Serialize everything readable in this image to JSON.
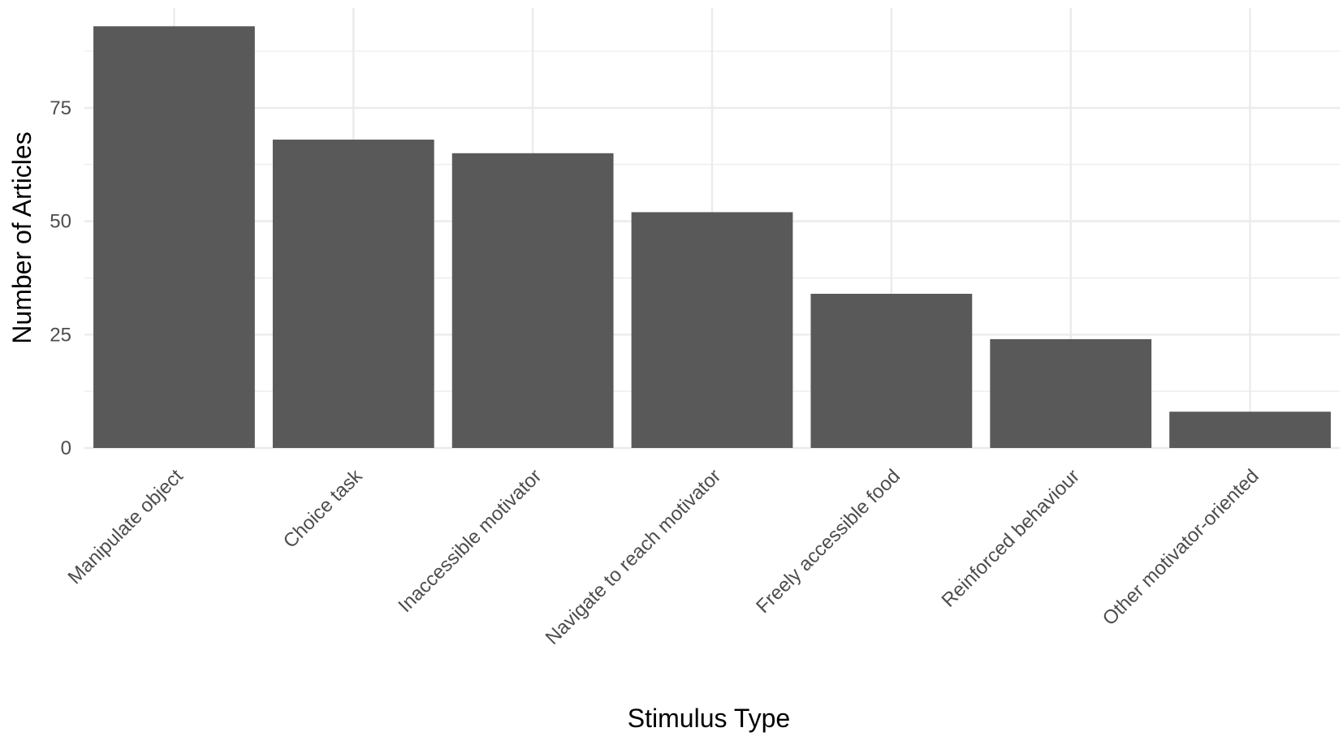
{
  "chart_data": {
    "type": "bar",
    "categories": [
      "Manipulate object",
      "Choice task",
      "Inaccessible motivator",
      "Navigate to reach motivator",
      "Freely accessible food",
      "Reinforced behaviour",
      "Other motivator-oriented"
    ],
    "values": [
      93,
      68,
      65,
      52,
      34,
      24,
      8
    ],
    "xlabel": "Stimulus Type",
    "ylabel": "Number of Articles",
    "ylim": [
      0,
      97
    ],
    "yticks": [
      0,
      25,
      50,
      75
    ],
    "ytick_labels": [
      "0",
      "25",
      "50",
      "75"
    ],
    "grid": true,
    "bar_color": "#595959",
    "grid_color": "#ebebeb"
  }
}
